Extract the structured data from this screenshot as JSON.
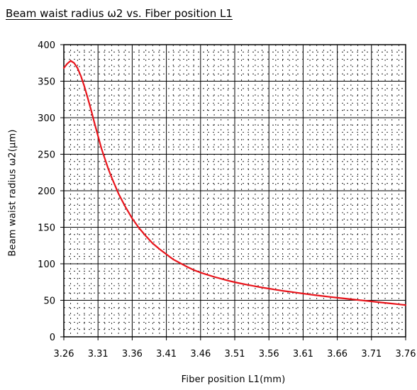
{
  "chart_data": {
    "type": "line",
    "title": "Beam waist radius ω2  vs. Fiber position L1",
    "xlabel": "Fiber position   L1(mm)",
    "ylabel": "Beam  waist  radius   ω2(μm)",
    "xlim": [
      3.26,
      3.76
    ],
    "ylim": [
      0,
      400
    ],
    "x_ticks": [
      "3.26",
      "3.31",
      "3.36",
      "3.41",
      "3.46",
      "3.51",
      "3.56",
      "3.61",
      "3.66",
      "3.71",
      "3.76"
    ],
    "y_ticks": [
      "0",
      "50",
      "100",
      "150",
      "200",
      "250",
      "300",
      "350",
      "400"
    ],
    "grid": true,
    "line_color": "#e8141b",
    "series": [
      {
        "x": [
          3.26,
          3.265,
          3.27,
          3.275,
          3.28,
          3.285,
          3.29,
          3.295,
          3.3,
          3.305,
          3.31,
          3.315,
          3.32,
          3.325,
          3.33,
          3.34,
          3.35,
          3.36,
          3.37,
          3.38,
          3.39,
          3.4,
          3.41,
          3.42,
          3.43,
          3.44,
          3.45,
          3.46,
          3.47,
          3.48,
          3.49,
          3.5,
          3.51,
          3.52,
          3.53,
          3.54,
          3.55,
          3.56,
          3.57,
          3.58,
          3.59,
          3.6,
          3.61,
          3.62,
          3.63,
          3.64,
          3.65,
          3.66,
          3.67,
          3.68,
          3.69,
          3.7,
          3.71,
          3.72,
          3.73,
          3.74,
          3.75,
          3.76
        ],
        "values": [
          368,
          374,
          378,
          375,
          368,
          357,
          343,
          327,
          310,
          292,
          275,
          258,
          244,
          230,
          218,
          196,
          178,
          162,
          149,
          138,
          128,
          120,
          113,
          106,
          101,
          96,
          91.5,
          88,
          85,
          82,
          79.5,
          77,
          74.8,
          72.8,
          71,
          69.2,
          67.5,
          66,
          64.5,
          63,
          61.8,
          60.5,
          59.2,
          58,
          56.8,
          55.7,
          54.6,
          53.5,
          52.5,
          51.5,
          50.5,
          49.5,
          48.5,
          47.5,
          46.5,
          45.5,
          44.5,
          43.5
        ]
      }
    ]
  }
}
